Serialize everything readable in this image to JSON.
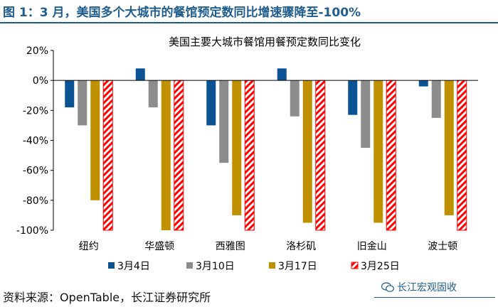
{
  "header": {
    "title": "图 1：3 月，美国多个大城市的餐馆预定数同比增速骤降至-100%"
  },
  "source": {
    "text": "资料来源：OpenTable，长江证券研究所"
  },
  "watermark": {
    "text": "长江宏观固收",
    "icon": "wechat-icon"
  },
  "colors": {
    "series": [
      "#0b5394",
      "#8c8c8c",
      "#bf9000",
      "#ff0000"
    ],
    "axis": "#000000"
  },
  "chart_data": {
    "type": "bar",
    "title": "美国主要大城市餐馆用餐预定数同比变化",
    "xlabel": "",
    "ylabel": "",
    "ylim": [
      -100,
      20
    ],
    "yticks": [
      20,
      0,
      -20,
      -40,
      -60,
      -80,
      -100
    ],
    "ytick_labels": [
      "20%",
      "0%",
      "-20%",
      "-40%",
      "-60%",
      "-80%",
      "-100%"
    ],
    "grid": false,
    "legend": "bottom",
    "categories": [
      "纽约",
      "华盛顿",
      "西雅图",
      "洛杉矶",
      "旧金山",
      "波士顿"
    ],
    "series": [
      {
        "name": "3月4日",
        "color": "#0b5394",
        "pattern": "solid",
        "values": [
          -18,
          8,
          -30,
          8,
          -23,
          -4
        ]
      },
      {
        "name": "3月10日",
        "color": "#8c8c8c",
        "pattern": "solid",
        "values": [
          -30,
          -18,
          -55,
          -24,
          -45,
          -25
        ]
      },
      {
        "name": "3月17日",
        "color": "#bf9000",
        "pattern": "solid",
        "values": [
          -80,
          -100,
          -90,
          -95,
          -95,
          -90
        ]
      },
      {
        "name": "3月25日",
        "color": "#ff0000",
        "pattern": "hatched",
        "values": [
          -100,
          -100,
          -100,
          -100,
          -100,
          -100
        ]
      }
    ]
  }
}
